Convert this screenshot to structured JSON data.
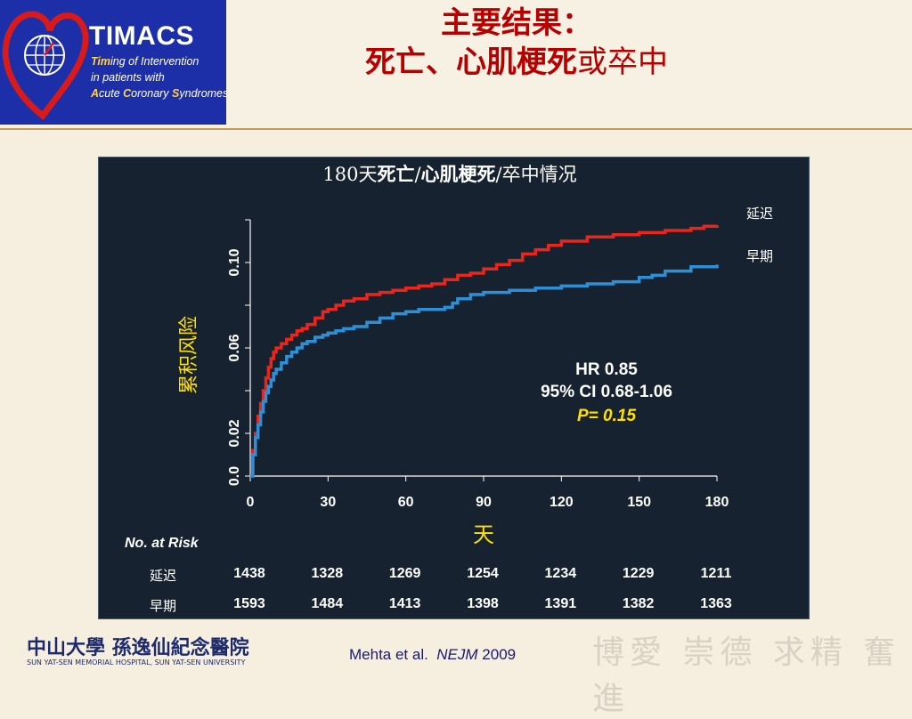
{
  "header": {
    "logo": {
      "title": "TIMACS",
      "lines": [
        {
          "hi": "Tim",
          "rest": "ing of Intervention"
        },
        {
          "hi": "",
          "rest": "in patients with"
        },
        {
          "hi": "A",
          "rest": "cute "
        },
        {
          "hi": "C",
          "rest": "oronary "
        },
        {
          "hi": "S",
          "rest": "yndromes"
        }
      ]
    },
    "title_line1": "主要结果：",
    "title_line2_bold": "死亡、心肌梗死",
    "title_line2_rest": "或卒中"
  },
  "chart_data": {
    "type": "line",
    "title": "180天死亡/心肌梗死/卒中情况",
    "title_parts": {
      "pre": "180天",
      "bold1": "死亡",
      "sep1": "/",
      "bold2": "心肌梗死",
      "post": "/卒中情况"
    },
    "xlabel": "天",
    "ylabel": "累积风险",
    "xlim": [
      0,
      180
    ],
    "ylim": [
      0,
      0.12
    ],
    "x_ticks": [
      "0",
      "30",
      "60",
      "90",
      "120",
      "150",
      "180"
    ],
    "y_ticks": [
      {
        "value": 0.0,
        "label": "0.0"
      },
      {
        "value": 0.02,
        "label": "0.02"
      },
      {
        "value": 0.06,
        "label": "0.06"
      },
      {
        "value": 0.1,
        "label": "0.10"
      }
    ],
    "series": [
      {
        "name": "延迟",
        "color": "#e8261c",
        "x": [
          0,
          1,
          2,
          3,
          4,
          5,
          6,
          7,
          8,
          9,
          10,
          12,
          14,
          16,
          18,
          20,
          22,
          25,
          28,
          30,
          33,
          36,
          40,
          45,
          50,
          55,
          60,
          65,
          70,
          75,
          80,
          85,
          90,
          95,
          100,
          105,
          110,
          115,
          120,
          130,
          140,
          150,
          160,
          170,
          175,
          180
        ],
        "y": [
          0,
          0.012,
          0.02,
          0.028,
          0.034,
          0.04,
          0.046,
          0.051,
          0.055,
          0.058,
          0.06,
          0.062,
          0.064,
          0.066,
          0.068,
          0.069,
          0.071,
          0.074,
          0.077,
          0.078,
          0.08,
          0.082,
          0.083,
          0.085,
          0.086,
          0.087,
          0.088,
          0.089,
          0.09,
          0.092,
          0.094,
          0.095,
          0.097,
          0.099,
          0.101,
          0.104,
          0.106,
          0.108,
          0.11,
          0.112,
          0.113,
          0.114,
          0.115,
          0.116,
          0.117,
          0.1175
        ]
      },
      {
        "name": "早期",
        "color": "#2f8fd6",
        "x": [
          0,
          1,
          2,
          3,
          4,
          5,
          6,
          7,
          8,
          9,
          10,
          12,
          14,
          16,
          18,
          20,
          22,
          25,
          28,
          30,
          33,
          36,
          40,
          45,
          50,
          55,
          60,
          65,
          70,
          75,
          78,
          80,
          85,
          90,
          95,
          100,
          105,
          110,
          115,
          120,
          130,
          140,
          150,
          155,
          160,
          170,
          180
        ],
        "y": [
          0,
          0.01,
          0.018,
          0.024,
          0.03,
          0.035,
          0.039,
          0.042,
          0.045,
          0.048,
          0.05,
          0.053,
          0.056,
          0.058,
          0.06,
          0.062,
          0.063,
          0.065,
          0.066,
          0.067,
          0.068,
          0.069,
          0.07,
          0.072,
          0.074,
          0.076,
          0.077,
          0.078,
          0.078,
          0.079,
          0.081,
          0.083,
          0.085,
          0.086,
          0.086,
          0.087,
          0.087,
          0.088,
          0.088,
          0.089,
          0.09,
          0.091,
          0.093,
          0.094,
          0.096,
          0.098,
          0.099
        ]
      }
    ],
    "stats": {
      "hr": "HR 0.85",
      "ci": "95% CI 0.68-1.06",
      "p": "P= 0.15"
    }
  },
  "risk_table": {
    "label": "No. at Risk",
    "rows": [
      {
        "name": "延迟",
        "values": [
          "1438",
          "1328",
          "1269",
          "1254",
          "1234",
          "1229",
          "1211"
        ]
      },
      {
        "name": "早期",
        "values": [
          "1593",
          "1484",
          "1413",
          "1398",
          "1391",
          "1382",
          "1363"
        ]
      }
    ]
  },
  "footer": {
    "logo_text": "中山大學 孫逸仙紀念醫院",
    "logo_sub": "SUN YAT-SEN MEMORIAL HOSPITAL, SUN YAT-SEN UNIVERSITY",
    "citation_authors": "Mehta et al.",
    "citation_journal": "NEJM",
    "citation_year": "2009",
    "motto": "博愛 崇德 求精 奮進"
  }
}
